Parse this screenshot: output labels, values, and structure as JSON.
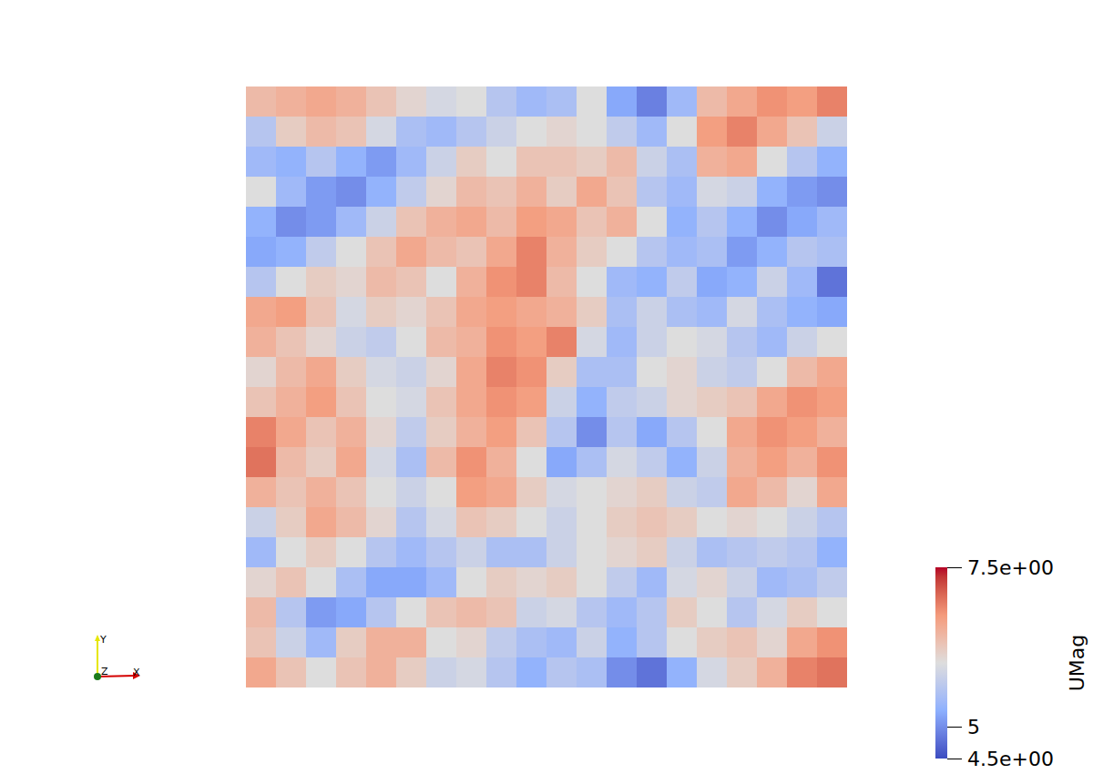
{
  "chart_data": {
    "type": "heatmap",
    "tick_labels": false,
    "cells": [
      [
        6.4,
        6.5,
        6.6,
        6.5,
        6.3,
        6.1,
        5.9,
        6.0,
        5.6,
        5.4,
        5.5,
        6.0,
        5.2,
        4.9,
        5.4,
        6.4,
        6.6,
        6.8,
        6.7,
        6.9
      ],
      [
        5.6,
        6.2,
        6.4,
        6.3,
        5.9,
        5.5,
        5.4,
        5.6,
        5.8,
        6.0,
        6.1,
        6.0,
        5.7,
        5.4,
        6.0,
        6.7,
        6.9,
        6.6,
        6.3,
        5.8
      ],
      [
        5.4,
        5.3,
        5.6,
        5.3,
        5.1,
        5.4,
        5.8,
        6.2,
        6.0,
        6.3,
        6.3,
        6.2,
        6.4,
        5.8,
        5.5,
        6.5,
        6.6,
        6.0,
        5.6,
        5.3
      ],
      [
        6.0,
        5.4,
        5.1,
        5.0,
        5.3,
        5.7,
        6.1,
        6.4,
        6.3,
        6.5,
        6.2,
        6.6,
        6.3,
        5.6,
        5.4,
        5.9,
        5.8,
        5.3,
        5.1,
        5.0
      ],
      [
        5.3,
        5.0,
        5.1,
        5.4,
        5.8,
        6.3,
        6.5,
        6.6,
        6.4,
        6.7,
        6.6,
        6.3,
        6.5,
        6.0,
        5.3,
        5.6,
        5.3,
        5.0,
        5.2,
        5.4
      ],
      [
        5.2,
        5.3,
        5.7,
        6.0,
        6.3,
        6.6,
        6.4,
        6.3,
        6.6,
        6.9,
        6.5,
        6.2,
        6.0,
        5.6,
        5.4,
        5.5,
        5.1,
        5.3,
        5.6,
        5.5
      ],
      [
        5.6,
        6.0,
        6.2,
        6.1,
        6.4,
        6.3,
        6.0,
        6.5,
        6.8,
        6.9,
        6.4,
        6.0,
        5.4,
        5.3,
        5.7,
        5.2,
        5.3,
        5.8,
        5.4,
        4.8
      ],
      [
        6.6,
        6.7,
        6.3,
        5.9,
        6.2,
        6.1,
        6.3,
        6.6,
        6.7,
        6.6,
        6.5,
        6.2,
        5.5,
        5.8,
        5.5,
        5.4,
        5.9,
        5.5,
        5.3,
        5.2
      ],
      [
        6.5,
        6.3,
        6.1,
        5.8,
        5.7,
        6.0,
        6.4,
        6.5,
        6.8,
        6.7,
        6.9,
        5.9,
        5.4,
        5.8,
        6.0,
        5.9,
        5.6,
        5.4,
        5.8,
        6.0
      ],
      [
        6.1,
        6.4,
        6.6,
        6.2,
        5.9,
        5.8,
        6.1,
        6.6,
        6.9,
        6.8,
        6.2,
        5.5,
        5.5,
        6.0,
        6.1,
        5.8,
        5.7,
        6.0,
        6.4,
        6.6
      ],
      [
        6.3,
        6.5,
        6.7,
        6.3,
        6.0,
        5.9,
        6.3,
        6.6,
        6.8,
        6.7,
        5.8,
        5.3,
        5.7,
        5.8,
        6.1,
        6.2,
        6.3,
        6.6,
        6.8,
        6.7
      ],
      [
        6.9,
        6.6,
        6.3,
        6.5,
        6.1,
        5.7,
        6.2,
        6.5,
        6.7,
        6.3,
        5.6,
        5.0,
        5.6,
        5.2,
        5.6,
        6.0,
        6.6,
        6.8,
        6.7,
        6.5
      ],
      [
        7.0,
        6.4,
        6.2,
        6.6,
        5.9,
        5.5,
        6.4,
        6.8,
        6.5,
        6.0,
        5.2,
        5.5,
        5.9,
        5.7,
        5.3,
        5.8,
        6.5,
        6.7,
        6.5,
        6.8
      ],
      [
        6.5,
        6.3,
        6.5,
        6.3,
        6.0,
        5.8,
        6.0,
        6.7,
        6.6,
        6.2,
        5.9,
        6.0,
        6.1,
        6.2,
        5.8,
        5.7,
        6.6,
        6.4,
        6.1,
        6.6
      ],
      [
        5.8,
        6.2,
        6.6,
        6.4,
        6.1,
        5.6,
        5.9,
        6.3,
        6.2,
        6.0,
        5.8,
        6.0,
        6.2,
        6.3,
        6.2,
        6.0,
        6.1,
        6.0,
        5.8,
        5.6
      ],
      [
        5.4,
        6.0,
        6.2,
        6.0,
        5.6,
        5.4,
        5.6,
        5.8,
        5.5,
        5.5,
        5.8,
        6.0,
        6.1,
        6.2,
        5.8,
        5.5,
        5.6,
        5.7,
        5.6,
        5.3
      ],
      [
        6.1,
        6.3,
        6.0,
        5.5,
        5.2,
        5.2,
        5.4,
        6.0,
        6.2,
        6.1,
        6.2,
        6.0,
        5.7,
        5.4,
        5.9,
        6.1,
        5.8,
        5.4,
        5.5,
        5.7
      ],
      [
        6.4,
        5.6,
        5.1,
        5.2,
        5.6,
        6.0,
        6.3,
        6.4,
        6.3,
        5.8,
        5.9,
        5.6,
        5.4,
        5.6,
        6.2,
        6.0,
        5.6,
        5.9,
        6.2,
        6.0
      ],
      [
        6.3,
        5.8,
        5.4,
        6.2,
        6.5,
        6.5,
        6.0,
        6.1,
        5.7,
        5.5,
        5.4,
        5.8,
        5.3,
        5.6,
        6.0,
        6.2,
        6.3,
        6.1,
        6.6,
        6.8
      ],
      [
        6.6,
        6.3,
        6.0,
        6.3,
        6.5,
        6.2,
        5.8,
        5.9,
        5.6,
        5.3,
        5.6,
        5.5,
        5.0,
        4.8,
        5.3,
        5.9,
        6.2,
        6.5,
        6.9,
        7.0
      ]
    ],
    "colorbar_title": "UMag",
    "color_range": [
      4.5,
      7.5
    ],
    "color_ticks": [
      {
        "value": 7.5,
        "label": "7.5e+00"
      },
      5,
      {
        "value": 4.5,
        "label": "4.5e+00"
      }
    ],
    "axes_triad": {
      "x": "X",
      "y": "Y",
      "z": "Z"
    }
  }
}
